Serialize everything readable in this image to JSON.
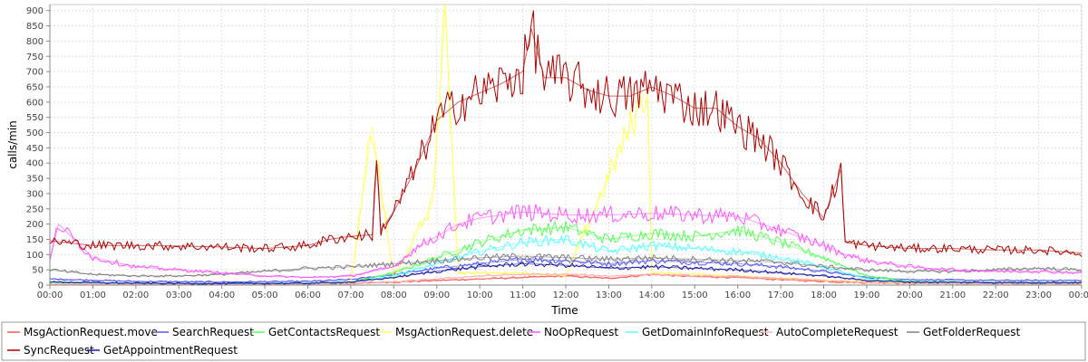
{
  "chart_data": {
    "type": "line",
    "xlabel": "Time",
    "ylabel": "calls/min",
    "ylim": [
      0,
      920
    ],
    "yticks": [
      0,
      50,
      100,
      150,
      200,
      250,
      300,
      350,
      400,
      450,
      500,
      550,
      600,
      650,
      700,
      750,
      800,
      850,
      900
    ],
    "xlim": [
      0,
      24
    ],
    "xticks": [
      "00:00",
      "01:00",
      "02:00",
      "03:00",
      "04:00",
      "05:00",
      "06:00",
      "07:00",
      "08:00",
      "09:00",
      "10:00",
      "11:00",
      "12:00",
      "13:00",
      "14:00",
      "15:00",
      "16:00",
      "17:00",
      "18:00",
      "19:00",
      "20:00",
      "21:00",
      "22:00",
      "23:00",
      "00:00"
    ],
    "grid": true,
    "legend_position": "bottom",
    "series": [
      {
        "name": "MsgActionRequest.move",
        "color": "#ff5555",
        "x": [
          0,
          2,
          4,
          6,
          7,
          8,
          9,
          10,
          11,
          12,
          13,
          14,
          15,
          16,
          17,
          18,
          19,
          20,
          22,
          24
        ],
        "values": [
          5,
          4,
          3,
          4,
          6,
          10,
          15,
          20,
          25,
          30,
          22,
          35,
          28,
          25,
          18,
          12,
          8,
          6,
          5,
          5
        ]
      },
      {
        "name": "SearchRequest",
        "color": "#5555ff",
        "x": [
          0,
          2,
          4,
          6,
          7,
          8,
          9,
          10,
          11,
          12,
          13,
          14,
          15,
          16,
          17,
          18,
          19,
          20,
          22,
          24
        ],
        "values": [
          20,
          12,
          10,
          12,
          18,
          35,
          55,
          70,
          85,
          80,
          70,
          80,
          75,
          70,
          60,
          45,
          25,
          18,
          15,
          15
        ]
      },
      {
        "name": "GetContactsRequest",
        "color": "#55ff55",
        "x": [
          0,
          2,
          4,
          6,
          7,
          8,
          9,
          10,
          11,
          12,
          13,
          14,
          15,
          16,
          17,
          18,
          19,
          20,
          22,
          24
        ],
        "values": [
          5,
          3,
          3,
          4,
          10,
          40,
          90,
          140,
          180,
          190,
          150,
          170,
          160,
          180,
          140,
          90,
          30,
          12,
          8,
          8
        ]
      },
      {
        "name": "MsgActionRequest.delete",
        "color": "#ffff55",
        "x": [
          0,
          2,
          4,
          6,
          7,
          7.5,
          8,
          8.9,
          9.2,
          9.5,
          11,
          12,
          13.9,
          14,
          16,
          18,
          20,
          22,
          24
        ],
        "values": [
          5,
          3,
          3,
          4,
          8,
          520,
          20,
          270,
          900,
          40,
          40,
          30,
          650,
          40,
          30,
          15,
          8,
          6,
          5
        ]
      },
      {
        "name": "NoOpRequest",
        "color": "#ff55ff",
        "x": [
          0,
          0.2,
          1,
          2,
          3,
          4,
          5,
          6,
          7,
          8,
          8.5,
          9,
          9.5,
          10,
          11,
          12,
          13,
          14,
          15,
          16,
          17,
          18,
          18.5,
          19,
          20,
          21,
          22,
          23,
          24
        ],
        "values": [
          80,
          200,
          90,
          60,
          50,
          40,
          30,
          25,
          30,
          60,
          120,
          160,
          200,
          220,
          240,
          230,
          230,
          235,
          230,
          225,
          180,
          130,
          100,
          80,
          60,
          50,
          45,
          45,
          40
        ]
      },
      {
        "name": "GetDomainInfoRequest",
        "color": "#55ffff",
        "x": [
          0,
          2,
          4,
          6,
          7,
          8,
          9,
          10,
          11,
          12,
          13,
          14,
          15,
          16,
          17,
          18,
          19,
          20,
          22,
          24
        ],
        "values": [
          10,
          5,
          5,
          6,
          10,
          30,
          70,
          110,
          140,
          150,
          110,
          130,
          120,
          110,
          90,
          60,
          20,
          10,
          8,
          8
        ]
      },
      {
        "name": "AutoCompleteRequest",
        "color": "#ffafaf",
        "x": [
          0,
          2,
          4,
          6,
          7,
          8,
          9,
          10,
          11,
          12,
          13,
          14,
          15,
          16,
          17,
          18,
          19,
          20,
          22,
          24
        ],
        "values": [
          3,
          2,
          2,
          2,
          4,
          10,
          20,
          30,
          35,
          35,
          30,
          35,
          30,
          28,
          22,
          15,
          8,
          5,
          4,
          4
        ]
      },
      {
        "name": "GetFolderRequest",
        "color": "#808080",
        "x": [
          0,
          1,
          2,
          3,
          4,
          5,
          6,
          7,
          8,
          9,
          10,
          11,
          12,
          13,
          14,
          15,
          16,
          17,
          18,
          19,
          20,
          21,
          22,
          23,
          24
        ],
        "values": [
          50,
          35,
          30,
          30,
          35,
          45,
          55,
          60,
          70,
          80,
          90,
          95,
          90,
          85,
          90,
          85,
          80,
          75,
          60,
          50,
          45,
          45,
          50,
          55,
          50
        ]
      },
      {
        "name": "SyncRequest",
        "color": "#b00000",
        "x": [
          0,
          1,
          2,
          3,
          4,
          5,
          6,
          6.5,
          7,
          7.5,
          7.6,
          7.7,
          8,
          8.5,
          9,
          9.5,
          10,
          10.5,
          11,
          11.2,
          11.5,
          12,
          12.5,
          13,
          13.5,
          14,
          14.5,
          15,
          15.5,
          16,
          16.5,
          17,
          17.5,
          18,
          18.4,
          18.5,
          19,
          20,
          21,
          22,
          23,
          24
        ],
        "values": [
          145,
          130,
          130,
          128,
          125,
          120,
          130,
          150,
          160,
          165,
          400,
          180,
          240,
          380,
          540,
          600,
          630,
          660,
          700,
          840,
          680,
          680,
          640,
          620,
          620,
          650,
          620,
          580,
          580,
          520,
          480,
          400,
          300,
          220,
          380,
          140,
          130,
          120,
          120,
          115,
          115,
          105
        ]
      },
      {
        "name": "GetAppointmentRequest",
        "color": "#1a1aa0",
        "x": [
          0,
          2,
          4,
          6,
          7,
          8,
          9,
          10,
          11,
          12,
          13,
          14,
          15,
          16,
          17,
          18,
          19,
          20,
          22,
          24
        ],
        "values": [
          10,
          6,
          5,
          6,
          10,
          25,
          45,
          60,
          70,
          65,
          55,
          60,
          55,
          50,
          40,
          30,
          15,
          10,
          8,
          8
        ]
      }
    ]
  }
}
